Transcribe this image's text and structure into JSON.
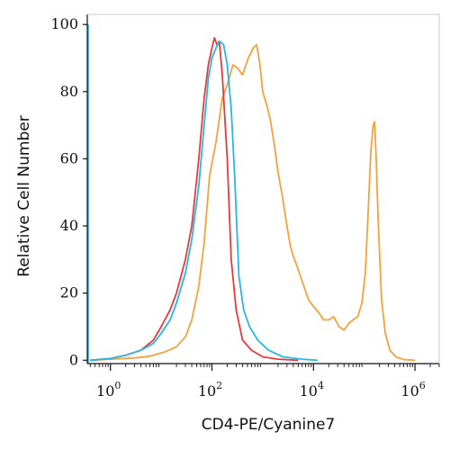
{
  "chart_data": {
    "type": "line",
    "xlabel": "CD4-PE/Cyanine7",
    "ylabel": "Relative Cell Number",
    "x_scale": "log",
    "xlim": [
      0.35,
      3000000
    ],
    "ylim": [
      -1,
      103
    ],
    "x_ticks": [
      {
        "value": 1,
        "base": "10",
        "exp": "0"
      },
      {
        "value": 100,
        "base": "10",
        "exp": "2"
      },
      {
        "value": 10000,
        "base": "10",
        "exp": "4"
      },
      {
        "value": 1000000,
        "base": "10",
        "exp": "6"
      }
    ],
    "y_ticks": [
      {
        "value": 0,
        "label": "0"
      },
      {
        "value": 20,
        "label": "20"
      },
      {
        "value": 40,
        "label": "40"
      },
      {
        "value": 60,
        "label": "60"
      },
      {
        "value": 80,
        "label": "80"
      },
      {
        "value": 100,
        "label": "100"
      }
    ],
    "grid": false,
    "series": [
      {
        "color": "#f4a23c",
        "points": [
          [
            0.4,
            0
          ],
          [
            1,
            0.3
          ],
          [
            3,
            0.7
          ],
          [
            6,
            1.2
          ],
          [
            12,
            2.5
          ],
          [
            20,
            4
          ],
          [
            30,
            7
          ],
          [
            40,
            12
          ],
          [
            55,
            22
          ],
          [
            70,
            35
          ],
          [
            90,
            55
          ],
          [
            120,
            65
          ],
          [
            160,
            78
          ],
          [
            200,
            82
          ],
          [
            260,
            88
          ],
          [
            320,
            87
          ],
          [
            400,
            85
          ],
          [
            520,
            90
          ],
          [
            650,
            93
          ],
          [
            760,
            94
          ],
          [
            880,
            88
          ],
          [
            1000,
            80
          ],
          [
            1200,
            76
          ],
          [
            1400,
            72
          ],
          [
            1700,
            64
          ],
          [
            2000,
            56
          ],
          [
            2500,
            48
          ],
          [
            3000,
            40
          ],
          [
            3500,
            34
          ],
          [
            4000,
            31
          ],
          [
            5000,
            27
          ],
          [
            6500,
            22
          ],
          [
            8000,
            18
          ],
          [
            10000,
            16
          ],
          [
            13000,
            14
          ],
          [
            16000,
            12
          ],
          [
            20000,
            12
          ],
          [
            25000,
            13
          ],
          [
            32000,
            10
          ],
          [
            40000,
            9
          ],
          [
            50000,
            11
          ],
          [
            60000,
            12
          ],
          [
            75000,
            13
          ],
          [
            90000,
            17
          ],
          [
            105000,
            26
          ],
          [
            120000,
            45
          ],
          [
            135000,
            62
          ],
          [
            150000,
            70
          ],
          [
            160000,
            71
          ],
          [
            170000,
            62
          ],
          [
            190000,
            40
          ],
          [
            220000,
            18
          ],
          [
            260000,
            8
          ],
          [
            320000,
            3
          ],
          [
            420000,
            1
          ],
          [
            600000,
            0.2
          ],
          [
            1000000,
            0
          ]
        ]
      },
      {
        "color": "#e83a3a",
        "points": [
          [
            0.4,
            0
          ],
          [
            1,
            0.5
          ],
          [
            2,
            1.5
          ],
          [
            4,
            3
          ],
          [
            7,
            6
          ],
          [
            10,
            10
          ],
          [
            15,
            15
          ],
          [
            20,
            20
          ],
          [
            30,
            30
          ],
          [
            40,
            40
          ],
          [
            55,
            60
          ],
          [
            70,
            78
          ],
          [
            85,
            88
          ],
          [
            100,
            93
          ],
          [
            112,
            96
          ],
          [
            125,
            94
          ],
          [
            140,
            95
          ],
          [
            160,
            85
          ],
          [
            200,
            60
          ],
          [
            240,
            30
          ],
          [
            300,
            15
          ],
          [
            400,
            6
          ],
          [
            600,
            3
          ],
          [
            1000,
            1
          ],
          [
            2000,
            0.3
          ],
          [
            5000,
            0
          ]
        ]
      },
      {
        "color": "#29b6e6",
        "points": [
          [
            0.4,
            0
          ],
          [
            1,
            0.5
          ],
          [
            2,
            1.5
          ],
          [
            4,
            3
          ],
          [
            7,
            5
          ],
          [
            10,
            8
          ],
          [
            15,
            12
          ],
          [
            20,
            17
          ],
          [
            30,
            26
          ],
          [
            40,
            36
          ],
          [
            55,
            52
          ],
          [
            70,
            70
          ],
          [
            85,
            84
          ],
          [
            100,
            90
          ],
          [
            120,
            93
          ],
          [
            140,
            95
          ],
          [
            170,
            94
          ],
          [
            200,
            88
          ],
          [
            240,
            75
          ],
          [
            280,
            55
          ],
          [
            340,
            25
          ],
          [
            420,
            15
          ],
          [
            550,
            10
          ],
          [
            800,
            6
          ],
          [
            1300,
            3
          ],
          [
            2500,
            1
          ],
          [
            6000,
            0.3
          ],
          [
            12000,
            0
          ]
        ]
      }
    ]
  }
}
